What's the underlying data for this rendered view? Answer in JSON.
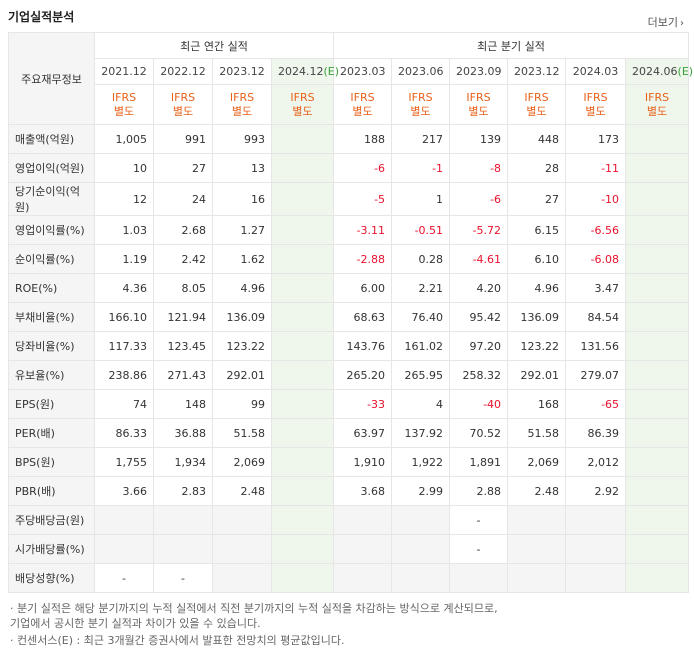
{
  "title": "기업실적분석",
  "more_label": "더보기",
  "header": {
    "row_label": "주요재무정보",
    "annual_group": "최근 연간 실적",
    "quarter_group": "최근 분기 실적",
    "periods": [
      "2021.12",
      "2022.12",
      "2023.12",
      "2024.12",
      "2023.03",
      "2023.06",
      "2023.09",
      "2023.12",
      "2024.03",
      "2024.06"
    ],
    "estimate_mark": "(E)",
    "ifrs": "IFRS",
    "basis": "별도"
  },
  "rows": [
    {
      "label": "매출액(억원)",
      "values": [
        "1,005",
        "991",
        "993",
        "",
        "188",
        "217",
        "139",
        "448",
        "173",
        ""
      ]
    },
    {
      "label": "영업이익(억원)",
      "values": [
        "10",
        "27",
        "13",
        "",
        "-6",
        "-1",
        "-8",
        "28",
        "-11",
        ""
      ]
    },
    {
      "label": "당기순이익(억원)",
      "values": [
        "12",
        "24",
        "16",
        "",
        "-5",
        "1",
        "-6",
        "27",
        "-10",
        ""
      ]
    },
    {
      "label": "영업이익률(%)",
      "values": [
        "1.03",
        "2.68",
        "1.27",
        "",
        "-3.11",
        "-0.51",
        "-5.72",
        "6.15",
        "-6.56",
        ""
      ]
    },
    {
      "label": "순이익률(%)",
      "values": [
        "1.19",
        "2.42",
        "1.62",
        "",
        "-2.88",
        "0.28",
        "-4.61",
        "6.10",
        "-6.08",
        ""
      ]
    },
    {
      "label": "ROE(%)",
      "values": [
        "4.36",
        "8.05",
        "4.96",
        "",
        "6.00",
        "2.21",
        "4.20",
        "4.96",
        "3.47",
        ""
      ]
    },
    {
      "label": "부채비율(%)",
      "values": [
        "166.10",
        "121.94",
        "136.09",
        "",
        "68.63",
        "76.40",
        "95.42",
        "136.09",
        "84.54",
        ""
      ]
    },
    {
      "label": "당좌비율(%)",
      "values": [
        "117.33",
        "123.45",
        "123.22",
        "",
        "143.76",
        "161.02",
        "97.20",
        "123.22",
        "131.56",
        ""
      ]
    },
    {
      "label": "유보율(%)",
      "values": [
        "238.86",
        "271.43",
        "292.01",
        "",
        "265.20",
        "265.95",
        "258.32",
        "292.01",
        "279.07",
        ""
      ]
    },
    {
      "label": "EPS(원)",
      "values": [
        "74",
        "148",
        "99",
        "",
        "-33",
        "4",
        "-40",
        "168",
        "-65",
        ""
      ]
    },
    {
      "label": "PER(배)",
      "values": [
        "86.33",
        "36.88",
        "51.58",
        "",
        "63.97",
        "137.92",
        "70.52",
        "51.58",
        "86.39",
        ""
      ]
    },
    {
      "label": "BPS(원)",
      "values": [
        "1,755",
        "1,934",
        "2,069",
        "",
        "1,910",
        "1,922",
        "1,891",
        "2,069",
        "2,012",
        ""
      ]
    },
    {
      "label": "PBR(배)",
      "values": [
        "3.66",
        "2.83",
        "2.48",
        "",
        "3.68",
        "2.99",
        "2.88",
        "2.48",
        "2.92",
        ""
      ]
    },
    {
      "label": "주당배당금(원)",
      "values": [
        "",
        "",
        "",
        "",
        "",
        "",
        "-",
        "",
        "",
        ""
      ]
    },
    {
      "label": "시가배당률(%)",
      "values": [
        "",
        "",
        "",
        "",
        "",
        "",
        "-",
        "",
        "",
        ""
      ]
    },
    {
      "label": "배당성향(%)",
      "values": [
        "-",
        "-",
        "",
        "",
        "",
        "",
        "",
        "",
        "",
        ""
      ]
    }
  ],
  "notes": [
    "· 분기 실적은 해당 분기까지의 누적 실적에서 직전 분기까지의 누적 실적을 차감하는 방식으로 계산되므로,",
    "  기업에서 공시한 분기 실적과 차이가 있을 수 있습니다.",
    "· 컨센서스(E) : 최근 3개월간 증권사에서 발표한 전망치의 평균값입니다."
  ]
}
